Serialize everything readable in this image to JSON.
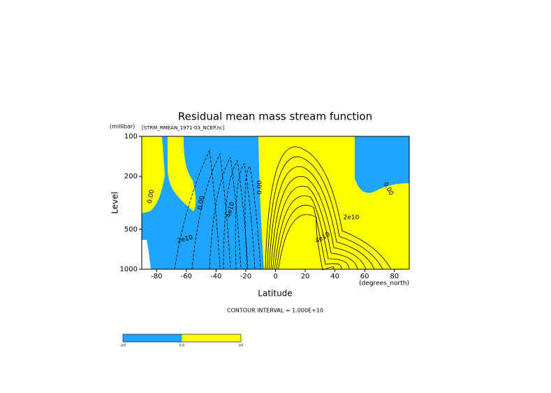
{
  "chart_data": {
    "type": "contour",
    "title": "Residual mean mass stream function",
    "subtitle": "[STRM_RMEAN_1971-03_NCEP.nc]",
    "x_label": "Latitude",
    "x_units": "(degrees_north)",
    "y_label": "Level",
    "y_units": "(millibar)",
    "footnote": "CONTOUR INTERVAL = 1.000E+10",
    "xlim": [
      -90,
      90
    ],
    "xticks": [
      -80,
      -60,
      -40,
      -20,
      0,
      20,
      40,
      60,
      80
    ],
    "ylim": [
      1000,
      100
    ],
    "yticks": [
      100,
      200,
      500,
      1000
    ],
    "log_scale_y": true,
    "fill_colors": [
      "#1ea5ff",
      "#ffff00"
    ],
    "contour_labels": [
      "0.00",
      "0.00",
      "4e10",
      "2e10",
      "0.00",
      "2e10",
      "4e10",
      "0.00"
    ],
    "colorbar_labels": [
      "-inf",
      "0.0",
      "inf"
    ]
  }
}
